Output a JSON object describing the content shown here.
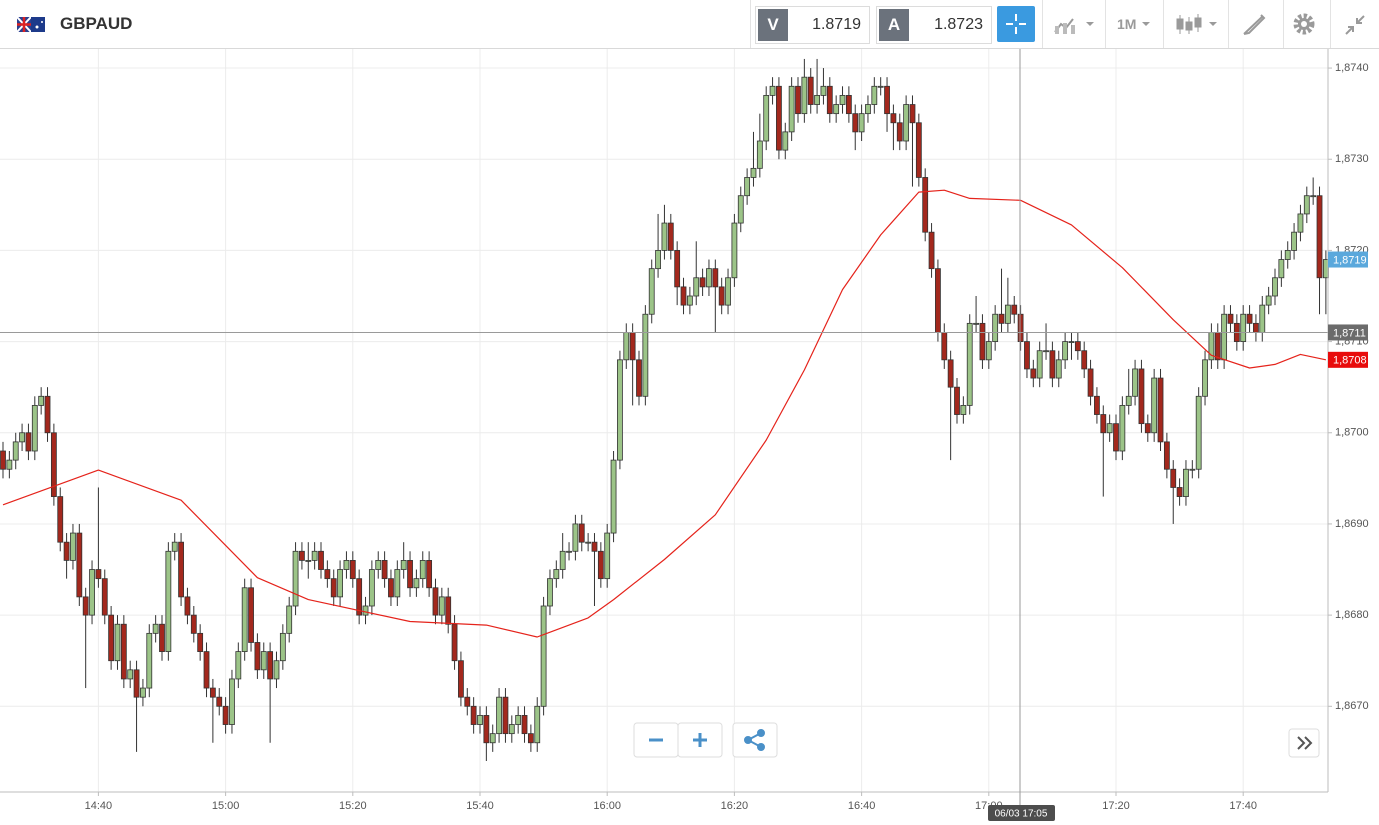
{
  "header": {
    "symbol": "GBPAUD",
    "bid_label": "V",
    "bid": 1.8719,
    "ask_label": "A",
    "ask": 1.8723,
    "timeframe": "1M"
  },
  "chart_data": {
    "type": "candlestick",
    "categories": [
      null,
      null,
      null,
      null,
      null,
      null,
      null,
      null,
      null,
      null,
      null,
      null,
      null,
      null,
      null,
      "14:40",
      null,
      null,
      null,
      null,
      null,
      null,
      null,
      null,
      null,
      null,
      null,
      null,
      null,
      null,
      null,
      null,
      null,
      null,
      null,
      "15:00",
      null,
      null,
      null,
      null,
      null,
      null,
      null,
      null,
      null,
      null,
      null,
      null,
      null,
      null,
      null,
      null,
      null,
      null,
      null,
      "15:20",
      null,
      null,
      null,
      null,
      null,
      null,
      null,
      null,
      null,
      null,
      null,
      null,
      null,
      null,
      null,
      null,
      null,
      null,
      null,
      "15:40",
      null,
      null,
      null,
      null,
      null,
      null,
      null,
      null,
      null,
      null,
      null,
      null,
      null,
      null,
      null,
      null,
      null,
      null,
      null,
      "16:00",
      null,
      null,
      null,
      null,
      null,
      null,
      null,
      null,
      null,
      null,
      null,
      null,
      null,
      null,
      null,
      null,
      null,
      null,
      null,
      "16:20",
      null,
      null,
      null,
      null,
      null,
      null,
      null,
      null,
      null,
      null,
      null,
      null,
      null,
      null,
      null,
      null,
      null,
      null,
      null,
      "16:40",
      null,
      null,
      null,
      null,
      null,
      null,
      null,
      null,
      null,
      null,
      null,
      null,
      null,
      null,
      null,
      null,
      null,
      null,
      null,
      "17:00",
      null,
      null,
      null,
      null,
      null,
      null,
      null,
      null,
      null,
      null,
      null,
      null,
      null,
      null,
      null,
      null,
      null,
      null,
      null,
      "17:20",
      null,
      null,
      null,
      null,
      null,
      null,
      null,
      null,
      null,
      null,
      null,
      null,
      null,
      null,
      null,
      null,
      null,
      null,
      null,
      "17:40",
      null,
      null,
      null,
      null,
      null,
      null,
      null,
      null,
      null,
      null,
      null,
      null,
      null
    ],
    "open": [
      1.8698,
      1.8696,
      1.8697,
      1.8699,
      1.87,
      1.8698,
      1.8703,
      1.8704,
      1.87,
      1.8693,
      1.8688,
      1.8686,
      1.8689,
      1.8682,
      1.868,
      1.8685,
      1.8684,
      1.868,
      1.8675,
      1.8679,
      1.8673,
      1.8674,
      1.8671,
      1.8672,
      1.8678,
      1.8679,
      1.8676,
      1.8687,
      1.8688,
      1.8682,
      1.868,
      1.8678,
      1.8676,
      1.8672,
      1.8671,
      1.867,
      1.8668,
      1.8673,
      1.8676,
      1.8683,
      1.8677,
      1.8674,
      1.8676,
      1.8673,
      1.8675,
      1.8678,
      1.8681,
      1.8687,
      1.8686,
      1.8686,
      1.8687,
      1.8685,
      1.8684,
      1.8682,
      1.8685,
      1.8686,
      1.8684,
      1.868,
      1.8681,
      1.8685,
      1.8686,
      1.8684,
      1.8682,
      1.8685,
      1.8686,
      1.8683,
      1.8684,
      1.8686,
      1.8683,
      1.868,
      1.8682,
      1.8679,
      1.8675,
      1.8671,
      1.867,
      1.8668,
      1.8669,
      1.8666,
      1.8667,
      1.8671,
      1.8667,
      1.8668,
      1.8669,
      1.8667,
      1.8666,
      1.867,
      1.8681,
      1.8684,
      1.8685,
      1.8687,
      1.8687,
      1.869,
      1.8688,
      1.8688,
      1.8687,
      1.8684,
      1.8689,
      1.8697,
      1.8708,
      1.8711,
      1.8708,
      1.8704,
      1.8713,
      1.8718,
      1.872,
      1.8723,
      1.872,
      1.8716,
      1.8714,
      1.8715,
      1.8717,
      1.8716,
      1.8718,
      1.8716,
      1.8714,
      1.8717,
      1.8723,
      1.8726,
      1.8728,
      1.8729,
      1.8732,
      1.8737,
      1.8738,
      1.8731,
      1.8733,
      1.8738,
      1.8735,
      1.8739,
      1.8736,
      1.8737,
      1.8738,
      1.8735,
      1.8736,
      1.8737,
      1.8735,
      1.8733,
      1.8735,
      1.8736,
      1.8738,
      1.8738,
      1.8735,
      1.8734,
      1.8732,
      1.8736,
      1.8734,
      1.8728,
      1.8722,
      1.8718,
      1.8711,
      1.8708,
      1.8705,
      1.8702,
      1.8703,
      1.8712,
      1.8712,
      1.8708,
      1.871,
      1.8713,
      1.8712,
      1.8714,
      1.8713,
      1.871,
      1.8707,
      1.8706,
      1.8709,
      1.8709,
      1.8706,
      1.8708,
      1.871,
      1.871,
      1.8709,
      1.8707,
      1.8704,
      1.8702,
      1.87,
      1.8701,
      1.8698,
      1.8703,
      1.8704,
      1.8707,
      1.8701,
      1.87,
      1.8706,
      1.8699,
      1.8696,
      1.8694,
      1.8693,
      1.8696,
      1.8696,
      1.8704,
      1.8708,
      1.8711,
      1.8708,
      1.8713,
      1.8712,
      1.871,
      1.8713,
      1.8712,
      1.8711,
      1.8714,
      1.8715,
      1.8717,
      1.8719,
      1.872,
      1.8722,
      1.8724,
      1.8726,
      1.8726,
      1.8717
    ],
    "high": [
      1.8699,
      1.8698,
      1.87,
      1.8701,
      1.8701,
      1.8704,
      1.8705,
      1.8705,
      1.8701,
      1.8694,
      1.8689,
      1.869,
      1.869,
      1.8683,
      1.8686,
      1.8694,
      1.8685,
      1.8681,
      1.868,
      1.868,
      1.8675,
      1.8675,
      1.8673,
      1.8679,
      1.868,
      1.868,
      1.8688,
      1.8689,
      1.8689,
      1.8683,
      1.8681,
      1.8679,
      1.8677,
      1.8673,
      1.8672,
      1.8671,
      1.8674,
      1.8677,
      1.8684,
      1.8684,
      1.8678,
      1.8677,
      1.8677,
      1.8676,
      1.8679,
      1.8682,
      1.8688,
      1.8688,
      1.8688,
      1.8688,
      1.8688,
      1.8686,
      1.8685,
      1.8686,
      1.8687,
      1.8687,
      1.8685,
      1.8682,
      1.8686,
      1.8687,
      1.8687,
      1.8685,
      1.8686,
      1.8688,
      1.8687,
      1.8685,
      1.8687,
      1.8687,
      1.8684,
      1.8683,
      1.8683,
      1.868,
      1.8676,
      1.8672,
      1.8671,
      1.867,
      1.867,
      1.8668,
      1.8672,
      1.8672,
      1.8669,
      1.867,
      1.867,
      1.8668,
      1.8671,
      1.8682,
      1.8685,
      1.8686,
      1.8689,
      1.8688,
      1.8691,
      1.8691,
      1.8689,
      1.8689,
      1.8688,
      1.869,
      1.8698,
      1.8709,
      1.8712,
      1.8712,
      1.8709,
      1.8714,
      1.8719,
      1.8724,
      1.8725,
      1.8724,
      1.8721,
      1.8717,
      1.8716,
      1.8721,
      1.8718,
      1.8719,
      1.8719,
      1.8717,
      1.8718,
      1.8724,
      1.8727,
      1.8729,
      1.8733,
      1.8735,
      1.8738,
      1.8739,
      1.8739,
      1.8734,
      1.8739,
      1.8739,
      1.8741,
      1.874,
      1.8741,
      1.874,
      1.8739,
      1.8737,
      1.8738,
      1.8738,
      1.8736,
      1.8736,
      1.8737,
      1.8739,
      1.8739,
      1.8739,
      1.8736,
      1.8735,
      1.8737,
      1.8737,
      1.8735,
      1.8729,
      1.8723,
      1.8719,
      1.8712,
      1.8709,
      1.8706,
      1.8704,
      1.8713,
      1.8715,
      1.8713,
      1.8711,
      1.8714,
      1.8718,
      1.8717,
      1.8715,
      1.8714,
      1.8711,
      1.8708,
      1.871,
      1.8712,
      1.871,
      1.8709,
      1.8711,
      1.8711,
      1.8711,
      1.871,
      1.8708,
      1.8705,
      1.8703,
      1.8702,
      1.8702,
      1.8704,
      1.8707,
      1.8708,
      1.8708,
      1.8702,
      1.8707,
      1.8707,
      1.87,
      1.8697,
      1.8695,
      1.8697,
      1.8697,
      1.8705,
      1.8709,
      1.8712,
      1.8712,
      1.8714,
      1.8714,
      1.8713,
      1.8714,
      1.8714,
      1.8713,
      1.8715,
      1.8716,
      1.8718,
      1.872,
      1.8721,
      1.8723,
      1.8725,
      1.8727,
      1.8728,
      1.8727,
      1.872
    ],
    "low": [
      1.8695,
      1.8695,
      1.8696,
      1.8698,
      1.8697,
      1.8697,
      1.8702,
      1.8699,
      1.8692,
      1.8687,
      1.8684,
      1.8685,
      1.8681,
      1.8672,
      1.8679,
      1.8683,
      1.8679,
      1.8674,
      1.8674,
      1.8672,
      1.8672,
      1.8665,
      1.867,
      1.8671,
      1.8677,
      1.8675,
      1.8675,
      1.8686,
      1.8681,
      1.8679,
      1.8677,
      1.8675,
      1.8671,
      1.8666,
      1.8669,
      1.8667,
      1.8667,
      1.8672,
      1.8675,
      1.8676,
      1.8673,
      1.8673,
      1.8666,
      1.8672,
      1.8674,
      1.8677,
      1.868,
      1.8685,
      1.8684,
      1.8685,
      1.8684,
      1.8683,
      1.8681,
      1.8681,
      1.8684,
      1.8683,
      1.8679,
      1.8679,
      1.868,
      1.8684,
      1.8683,
      1.8681,
      1.8681,
      1.8684,
      1.8682,
      1.8682,
      1.8683,
      1.8682,
      1.8679,
      1.8679,
      1.8678,
      1.8674,
      1.867,
      1.8669,
      1.8667,
      1.8667,
      1.8664,
      1.8665,
      1.8666,
      1.8666,
      1.8666,
      1.8667,
      1.8666,
      1.8665,
      1.8665,
      1.8669,
      1.868,
      1.8683,
      1.8684,
      1.8686,
      1.8686,
      1.8687,
      1.8687,
      1.8681,
      1.8683,
      1.8683,
      1.8688,
      1.8696,
      1.8707,
      1.8703,
      1.8703,
      1.8703,
      1.8712,
      1.8717,
      1.8719,
      1.8719,
      1.8714,
      1.8713,
      1.8713,
      1.8714,
      1.8715,
      1.8715,
      1.8711,
      1.8713,
      1.8713,
      1.8716,
      1.8722,
      1.8725,
      1.8727,
      1.8728,
      1.8731,
      1.8736,
      1.873,
      1.873,
      1.8732,
      1.8734,
      1.8734,
      1.8735,
      1.8735,
      1.8736,
      1.8734,
      1.8734,
      1.8735,
      1.8734,
      1.8731,
      1.8732,
      1.8734,
      1.8735,
      1.8737,
      1.8733,
      1.8731,
      1.8731,
      1.8731,
      1.8727,
      1.8727,
      1.8721,
      1.8717,
      1.871,
      1.8707,
      1.8697,
      1.8701,
      1.8701,
      1.8702,
      1.8711,
      1.8707,
      1.8707,
      1.8709,
      1.8711,
      1.8711,
      1.8712,
      1.8709,
      1.8706,
      1.8705,
      1.8705,
      1.8708,
      1.8705,
      1.8705,
      1.8707,
      1.8708,
      1.8708,
      1.8706,
      1.8703,
      1.8701,
      1.8693,
      1.8699,
      1.8697,
      1.8697,
      1.8702,
      1.8703,
      1.87,
      1.8699,
      1.8699,
      1.8698,
      1.8695,
      1.869,
      1.8692,
      1.8692,
      1.8695,
      1.8695,
      1.8703,
      1.8707,
      1.8707,
      1.8707,
      1.8711,
      1.8709,
      1.8709,
      1.8711,
      1.871,
      1.871,
      1.8713,
      1.8714,
      1.8716,
      1.8718,
      1.8719,
      1.8721,
      1.8723,
      1.8725,
      1.8713,
      1.8713
    ],
    "close": [
      1.8696,
      1.8697,
      1.8699,
      1.87,
      1.8698,
      1.8703,
      1.8704,
      1.87,
      1.8693,
      1.8688,
      1.8686,
      1.8689,
      1.8682,
      1.868,
      1.8685,
      1.8684,
      1.868,
      1.8675,
      1.8679,
      1.8673,
      1.8674,
      1.8671,
      1.8672,
      1.8678,
      1.8679,
      1.8676,
      1.8687,
      1.8688,
      1.8682,
      1.868,
      1.8678,
      1.8676,
      1.8672,
      1.8671,
      1.867,
      1.8668,
      1.8673,
      1.8676,
      1.8683,
      1.8677,
      1.8674,
      1.8676,
      1.8673,
      1.8675,
      1.8678,
      1.8681,
      1.8687,
      1.8686,
      1.8686,
      1.8687,
      1.8685,
      1.8684,
      1.8682,
      1.8685,
      1.8686,
      1.8684,
      1.868,
      1.8681,
      1.8685,
      1.8686,
      1.8684,
      1.8682,
      1.8685,
      1.8686,
      1.8683,
      1.8684,
      1.8686,
      1.8683,
      1.868,
      1.8682,
      1.8679,
      1.8675,
      1.8671,
      1.867,
      1.8668,
      1.8669,
      1.8666,
      1.8667,
      1.8671,
      1.8667,
      1.8668,
      1.8669,
      1.8667,
      1.8666,
      1.867,
      1.8681,
      1.8684,
      1.8685,
      1.8687,
      1.8687,
      1.869,
      1.8688,
      1.8688,
      1.8687,
      1.8684,
      1.8689,
      1.8697,
      1.8708,
      1.8711,
      1.8708,
      1.8704,
      1.8713,
      1.8718,
      1.872,
      1.8723,
      1.872,
      1.8716,
      1.8714,
      1.8715,
      1.8717,
      1.8716,
      1.8718,
      1.8716,
      1.8714,
      1.8717,
      1.8723,
      1.8726,
      1.8728,
      1.8729,
      1.8732,
      1.8737,
      1.8738,
      1.8731,
      1.8733,
      1.8738,
      1.8735,
      1.8739,
      1.8736,
      1.8737,
      1.8738,
      1.8735,
      1.8736,
      1.8737,
      1.8735,
      1.8733,
      1.8735,
      1.8736,
      1.8738,
      1.8738,
      1.8735,
      1.8734,
      1.8732,
      1.8736,
      1.8734,
      1.8728,
      1.8722,
      1.8718,
      1.8711,
      1.8708,
      1.8705,
      1.8702,
      1.8703,
      1.8712,
      1.8712,
      1.8708,
      1.871,
      1.8713,
      1.8712,
      1.8714,
      1.8713,
      1.871,
      1.8707,
      1.8706,
      1.8709,
      1.8709,
      1.8706,
      1.8708,
      1.871,
      1.871,
      1.8709,
      1.8707,
      1.8704,
      1.8702,
      1.87,
      1.8701,
      1.8698,
      1.8703,
      1.8704,
      1.8707,
      1.8701,
      1.87,
      1.8706,
      1.8699,
      1.8696,
      1.8694,
      1.8693,
      1.8696,
      1.8696,
      1.8704,
      1.8708,
      1.8711,
      1.8708,
      1.8713,
      1.8712,
      1.871,
      1.8713,
      1.8712,
      1.8711,
      1.8714,
      1.8715,
      1.8717,
      1.8719,
      1.872,
      1.8722,
      1.8724,
      1.8726,
      1.8726,
      1.8717,
      1.8719
    ],
    "up_color": "#9cc488",
    "down_color": "#a3281d",
    "ylim": [
      1.86606,
      1.87422
    ],
    "yticks": [
      {
        "value": 1.867,
        "label": "1,8670"
      },
      {
        "value": 1.868,
        "label": "1,8680"
      },
      {
        "value": 1.869,
        "label": "1,8690"
      },
      {
        "value": 1.87,
        "label": "1,8700"
      },
      {
        "value": 1.871,
        "label": "1,8710"
      },
      {
        "value": 1.872,
        "label": "1,8720"
      },
      {
        "value": 1.873,
        "label": "1,8730"
      },
      {
        "value": 1.874,
        "label": "1,8740"
      }
    ],
    "grid": true,
    "moving_average": {
      "color": "#e5231b",
      "x": [
        0,
        15,
        28,
        40,
        48,
        64,
        76,
        84,
        92,
        96,
        104,
        112,
        120,
        126,
        132,
        138,
        144,
        148,
        152,
        160,
        168,
        176,
        184,
        190,
        196,
        200,
        204,
        208
      ],
      "values": [
        1.86921,
        1.86959,
        1.86926,
        1.86841,
        1.86817,
        1.86793,
        1.86789,
        1.86776,
        1.86797,
        1.86817,
        1.86861,
        1.8691,
        1.86992,
        1.87069,
        1.87157,
        1.87217,
        1.87264,
        1.87266,
        1.87257,
        1.87255,
        1.87228,
        1.87181,
        1.87124,
        1.87085,
        1.87071,
        1.87075,
        1.87086,
        1.8708
      ]
    },
    "price_markers": [
      {
        "value": 1.8719,
        "label": "1,8719",
        "color": "#5aa8dc"
      },
      {
        "value": 1.8711,
        "label": "1,8711",
        "color": "#6b6b6b"
      },
      {
        "value": 1.8708,
        "label": "1,8708",
        "color": "#e80c0c"
      }
    ],
    "crosshair_label": "06/03 17:05"
  }
}
